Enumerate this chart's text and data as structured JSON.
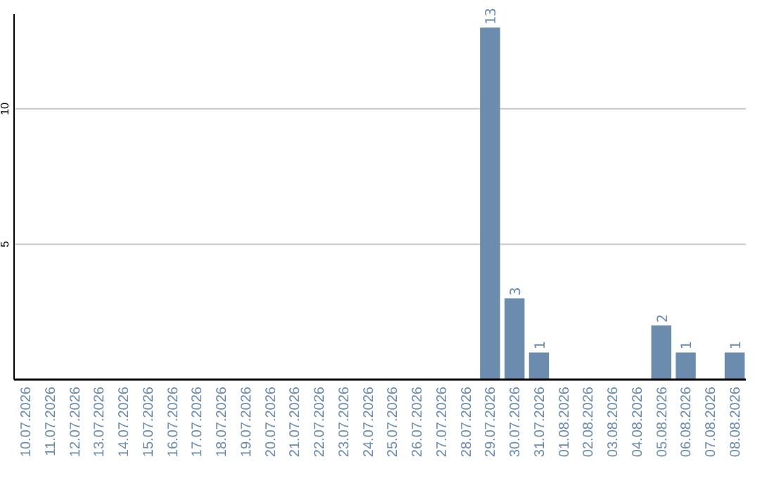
{
  "chart_data": {
    "type": "bar",
    "categories": [
      "10.07.2026",
      "11.07.2026",
      "12.07.2026",
      "13.07.2026",
      "14.07.2026",
      "15.07.2026",
      "16.07.2026",
      "17.07.2026",
      "18.07.2026",
      "19.07.2026",
      "20.07.2026",
      "21.07.2026",
      "22.07.2026",
      "23.07.2026",
      "24.07.2026",
      "25.07.2026",
      "26.07.2026",
      "27.07.2026",
      "28.07.2026",
      "29.07.2026",
      "30.07.2026",
      "31.07.2026",
      "01.08.2026",
      "02.08.2026",
      "03.08.2026",
      "04.08.2026",
      "05.08.2026",
      "06.08.2026",
      "07.08.2026",
      "08.08.2026"
    ],
    "values": [
      0,
      0,
      0,
      0,
      0,
      0,
      0,
      0,
      0,
      0,
      0,
      0,
      0,
      0,
      0,
      0,
      0,
      0,
      0,
      13,
      3,
      1,
      0,
      0,
      0,
      0,
      2,
      1,
      0,
      1
    ],
    "value_labels": [
      null,
      null,
      null,
      null,
      null,
      null,
      null,
      null,
      null,
      null,
      null,
      null,
      null,
      null,
      null,
      null,
      null,
      null,
      null,
      "13",
      "3",
      "1",
      null,
      null,
      null,
      null,
      "2",
      "1",
      null,
      "1"
    ],
    "color": "#6b8cad",
    "ylim": [
      0,
      13.5
    ],
    "yticks": [
      5,
      10
    ],
    "grid": "y"
  }
}
